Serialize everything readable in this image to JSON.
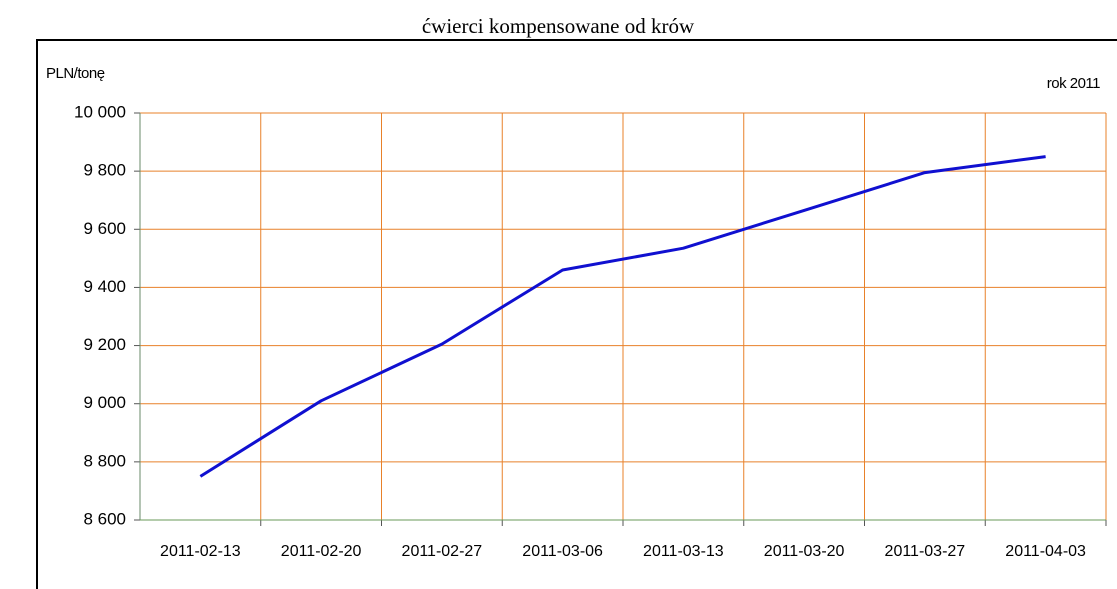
{
  "chart_data": {
    "type": "line",
    "title": "ćwierci kompensowane od krów",
    "y_label": "PLN/tonę",
    "annotation": "rok 2011",
    "categories": [
      "2011-02-13",
      "2011-02-20",
      "2011-02-27",
      "2011-03-06",
      "2011-03-13",
      "2011-03-20",
      "2011-03-27",
      "2011-04-03"
    ],
    "series": [
      {
        "color": "#1010d0",
        "values": [
          8750,
          9010,
          9205,
          9460,
          9535,
          9665,
          9795,
          9850
        ]
      }
    ],
    "ylim": [
      8600,
      10000
    ],
    "yticks": [
      {
        "value": 8600,
        "label": "8 600"
      },
      {
        "value": 8800,
        "label": "8 800"
      },
      {
        "value": 9000,
        "label": "9 000"
      },
      {
        "value": 9200,
        "label": "9 200"
      },
      {
        "value": 9400,
        "label": "9 400"
      },
      {
        "value": 9600,
        "label": "9 600"
      },
      {
        "value": 9800,
        "label": "9 800"
      },
      {
        "value": 10000,
        "label": "10 000"
      }
    ],
    "grid": true,
    "grid_color": "#e8812a"
  }
}
